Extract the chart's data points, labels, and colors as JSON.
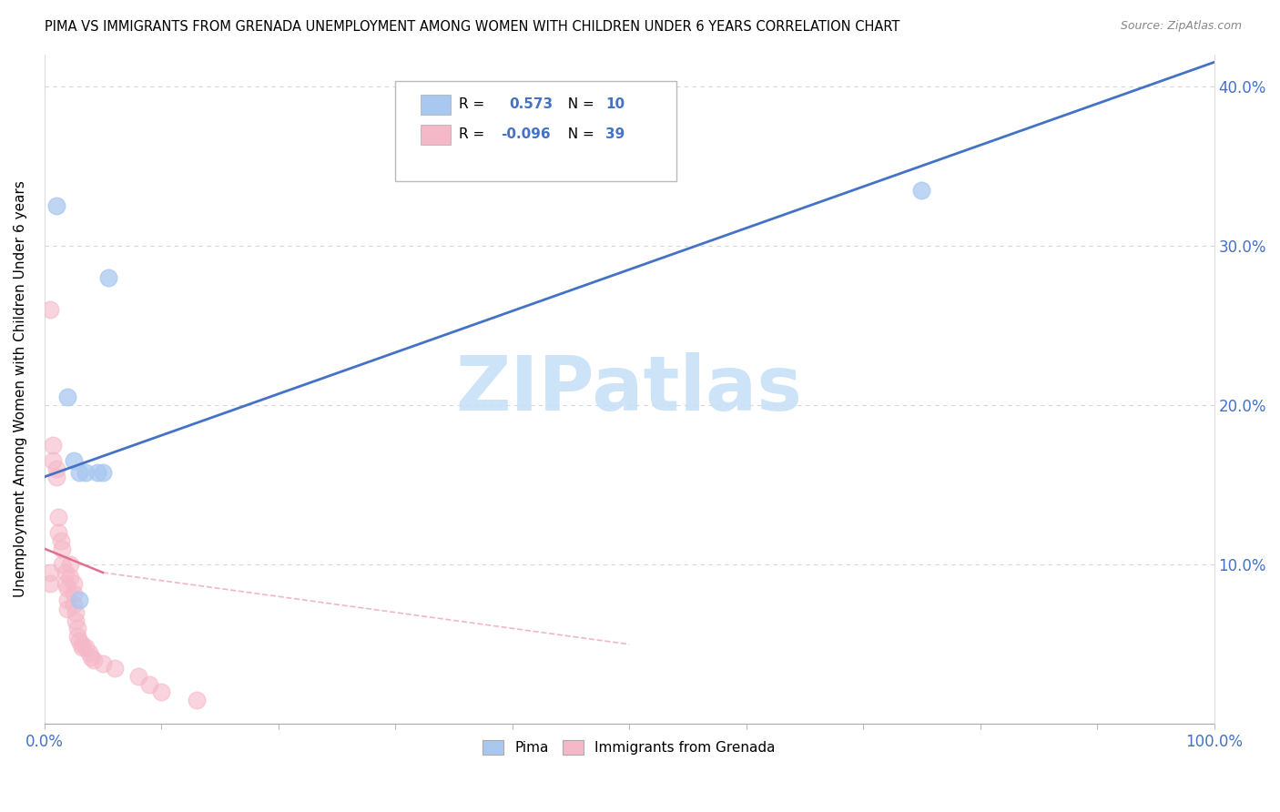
{
  "title": "PIMA VS IMMIGRANTS FROM GRENADA UNEMPLOYMENT AMONG WOMEN WITH CHILDREN UNDER 6 YEARS CORRELATION CHART",
  "source": "Source: ZipAtlas.com",
  "ylabel": "Unemployment Among Women with Children Under 6 years",
  "xlim": [
    0,
    1.0
  ],
  "ylim": [
    0,
    0.42
  ],
  "xticks": [
    0.0,
    0.1,
    0.2,
    0.3,
    0.4,
    0.5,
    0.6,
    0.7,
    0.8,
    0.9,
    1.0
  ],
  "xticklabels": [
    "0.0%",
    "",
    "",
    "",
    "",
    "",
    "",
    "",
    "",
    "",
    "100.0%"
  ],
  "yticks": [
    0.0,
    0.1,
    0.2,
    0.3,
    0.4
  ],
  "pima_R": 0.573,
  "pima_N": 10,
  "grenada_R": -0.096,
  "grenada_N": 39,
  "pima_color": "#a8c8f0",
  "grenada_color": "#f5b8c8",
  "pima_line_color": "#4472c4",
  "grenada_line_color": "#e07090",
  "watermark_text": "ZIPatlas",
  "watermark_color": "#c8e0f8",
  "background_color": "#ffffff",
  "pima_x": [
    0.01,
    0.055,
    0.02,
    0.025,
    0.03,
    0.035,
    0.045,
    0.05,
    0.75,
    0.03
  ],
  "pima_y": [
    0.325,
    0.28,
    0.205,
    0.165,
    0.158,
    0.158,
    0.158,
    0.158,
    0.335,
    0.078
  ],
  "grenada_x": [
    0.005,
    0.005,
    0.005,
    0.007,
    0.007,
    0.01,
    0.01,
    0.012,
    0.012,
    0.014,
    0.015,
    0.015,
    0.018,
    0.018,
    0.02,
    0.02,
    0.02,
    0.022,
    0.022,
    0.025,
    0.025,
    0.025,
    0.027,
    0.027,
    0.028,
    0.028,
    0.03,
    0.032,
    0.032,
    0.035,
    0.038,
    0.04,
    0.042,
    0.05,
    0.06,
    0.08,
    0.09,
    0.1,
    0.13
  ],
  "grenada_y": [
    0.26,
    0.095,
    0.088,
    0.175,
    0.165,
    0.16,
    0.155,
    0.13,
    0.12,
    0.115,
    0.11,
    0.1,
    0.095,
    0.088,
    0.085,
    0.078,
    0.072,
    0.1,
    0.092,
    0.088,
    0.082,
    0.075,
    0.07,
    0.065,
    0.06,
    0.055,
    0.052,
    0.05,
    0.048,
    0.048,
    0.045,
    0.042,
    0.04,
    0.038,
    0.035,
    0.03,
    0.025,
    0.02,
    0.015
  ],
  "pima_line_x0": 0.0,
  "pima_line_y0": 0.155,
  "pima_line_x1": 1.0,
  "pima_line_y1": 0.415,
  "grenada_line_solid_x0": 0.0,
  "grenada_line_solid_y0": 0.11,
  "grenada_line_solid_x1": 0.05,
  "grenada_line_solid_y1": 0.095,
  "grenada_line_dash_x0": 0.05,
  "grenada_line_dash_y0": 0.095,
  "grenada_line_dash_x1": 0.5,
  "grenada_line_dash_y1": 0.05
}
